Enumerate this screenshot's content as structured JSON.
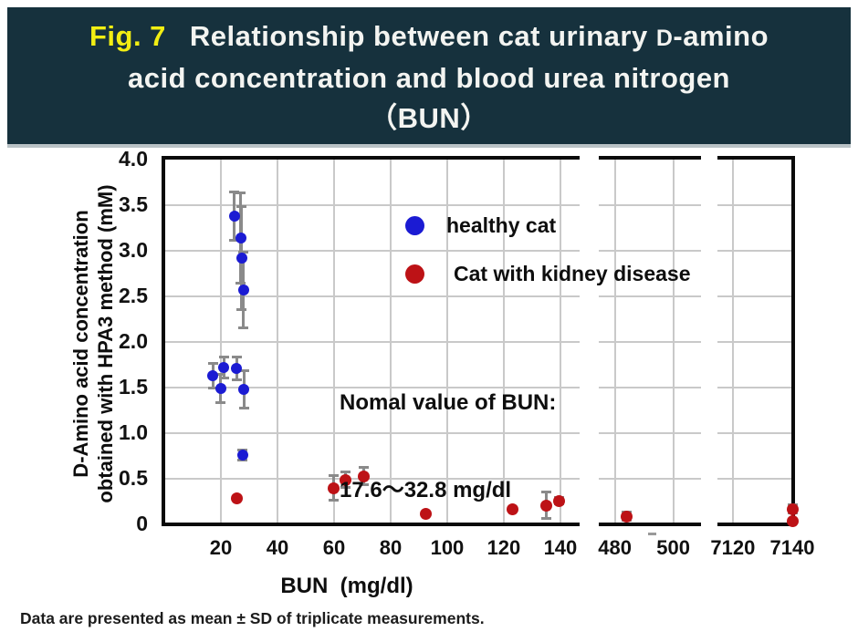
{
  "header": {
    "fig_label": "Fig. 7",
    "title_pre": "Relationship between cat urinary ",
    "title_smallcap_d": "D",
    "title_line1_rest": "-amino",
    "title_line2": "acid concentration and blood urea nitrogen",
    "title_line3": "（BUN）"
  },
  "colors": {
    "banner_background": "#16313d",
    "figure_label_yellow": "#f2ee13",
    "banner_text": "#f3f4f1",
    "healthy_cat_blue": "#1b1bd3",
    "kidney_disease_red": "#bd1216",
    "gridline_gray": "#c9c9c9",
    "error_bar_gray": "#8a8a8a",
    "axis_black": "#0a0a0a"
  },
  "chart_data": {
    "type": "scatter",
    "title": "",
    "xlabel": "BUN  (mg/dl)",
    "ylabel_lines": [
      "D-Amino acid concentration",
      "obtained with HPA3 method (mM)"
    ],
    "ylim": [
      0,
      4.0
    ],
    "yticks": [
      0,
      0.5,
      1.0,
      1.5,
      2.0,
      2.5,
      3.0,
      3.5,
      4.0
    ],
    "ytick_labels": [
      "0",
      "0.5",
      "1.0",
      "1.5",
      "2.0",
      "2.5",
      "3.0",
      "3.5",
      "4.0"
    ],
    "grid": true,
    "x_axis_broken": true,
    "x_segments": [
      {
        "range": [
          0,
          146.8
        ],
        "ticks": [
          20,
          40,
          60,
          80,
          100,
          120,
          140
        ]
      },
      {
        "range": [
          474.5,
          509.5
        ],
        "ticks": [
          480,
          500
        ]
      },
      {
        "range": [
          7114.8,
          7140
        ],
        "ticks": [
          7120,
          7140
        ]
      }
    ],
    "legend_position": "inside-top-center",
    "series": [
      {
        "name": "healthy cat",
        "color": "#1b1bd3",
        "marker": "circle",
        "marker_size": 12,
        "points_format": [
          "BUN mg/dl",
          "D-amino acid mM",
          "SD"
        ],
        "points": [
          [
            24.8,
            3.38,
            0.27
          ],
          [
            27.0,
            3.14,
            0.5
          ],
          [
            27.4,
            2.92,
            0.57
          ],
          [
            28.0,
            2.57,
            0.42
          ],
          [
            17.1,
            1.63,
            0.14
          ],
          [
            21.0,
            1.72,
            0.12
          ],
          [
            20.0,
            1.49,
            0.16
          ],
          [
            25.5,
            1.71,
            0.13
          ],
          [
            28.2,
            1.48,
            0.21
          ],
          [
            27.7,
            0.76,
            0.06
          ]
        ]
      },
      {
        "name": "Cat with kidney disease",
        "color": "#bd1216",
        "marker": "circle",
        "marker_size": 13,
        "points_format": [
          "BUN mg/dl",
          "D-amino acid mM",
          "SD"
        ],
        "points": [
          [
            25.5,
            0.29,
            0.02
          ],
          [
            59.7,
            0.4,
            0.14
          ],
          [
            64.0,
            0.49,
            0.09
          ],
          [
            70.6,
            0.53,
            0.1
          ],
          [
            92.3,
            0.12,
            0.02
          ],
          [
            123.0,
            0.17,
            0.02
          ],
          [
            135.0,
            0.21,
            0.15
          ],
          [
            139.4,
            0.26,
            0.04
          ],
          [
            484.0,
            0.09,
            0.05
          ],
          [
            7140.0,
            0.17,
            0.05
          ],
          [
            7140.0,
            0.04,
            0.02
          ]
        ]
      }
    ],
    "annotation": {
      "line1": "Nomal value of BUN:",
      "line2": "17.6〜32.8 mg/dl"
    }
  },
  "footer": {
    "note": "Data are presented as mean ± SD of triplicate measurements."
  }
}
